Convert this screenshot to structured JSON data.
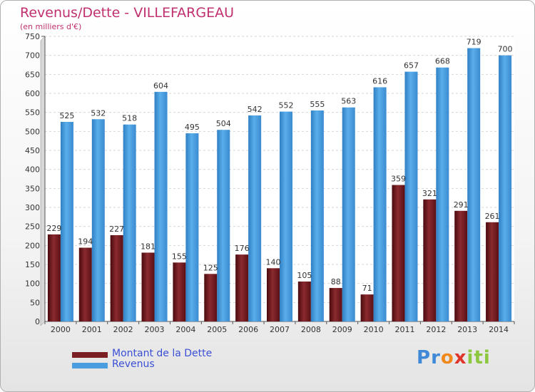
{
  "header": {
    "title": "Revenus/Dette - VILLEFARGEAU",
    "subtitle": "(en milliers d'€)"
  },
  "legend": {
    "items": [
      {
        "label": "Montant de la Dette",
        "color": "#7a1f24"
      },
      {
        "label": "Revenus",
        "color": "#4a9ee0"
      }
    ]
  },
  "logo": {
    "letters": [
      "P",
      "r",
      "o",
      "x",
      "i",
      "t",
      "i"
    ],
    "colors": [
      "#3f89d6",
      "#3f89d6",
      "#f08a1c",
      "#e0352b",
      "#8dc63f",
      "#8dc63f",
      "#8dc63f"
    ]
  },
  "chart_data": {
    "type": "bar",
    "categories": [
      "2000",
      "2001",
      "2002",
      "2003",
      "2004",
      "2005",
      "2006",
      "2007",
      "2008",
      "2009",
      "2010",
      "2011",
      "2012",
      "2013",
      "2014"
    ],
    "series": [
      {
        "name": "Montant de la Dette",
        "color": "#7a1f24",
        "values": [
          229,
          194,
          227,
          181,
          155,
          125,
          176,
          140,
          105,
          88,
          71,
          359,
          321,
          291,
          261
        ]
      },
      {
        "name": "Revenus",
        "color": "#4a9ee0",
        "values": [
          525,
          532,
          518,
          604,
          495,
          504,
          542,
          552,
          555,
          563,
          616,
          657,
          668,
          719,
          700
        ]
      }
    ],
    "title": "Revenus/Dette - VILLEFARGEAU",
    "subtitle": "(en milliers d'€)",
    "ylim": [
      0,
      750
    ],
    "yticks": [
      0,
      50,
      100,
      150,
      200,
      250,
      300,
      350,
      400,
      450,
      500,
      550,
      600,
      650,
      700,
      750
    ],
    "grid": true,
    "legend_position": "bottom-left"
  }
}
